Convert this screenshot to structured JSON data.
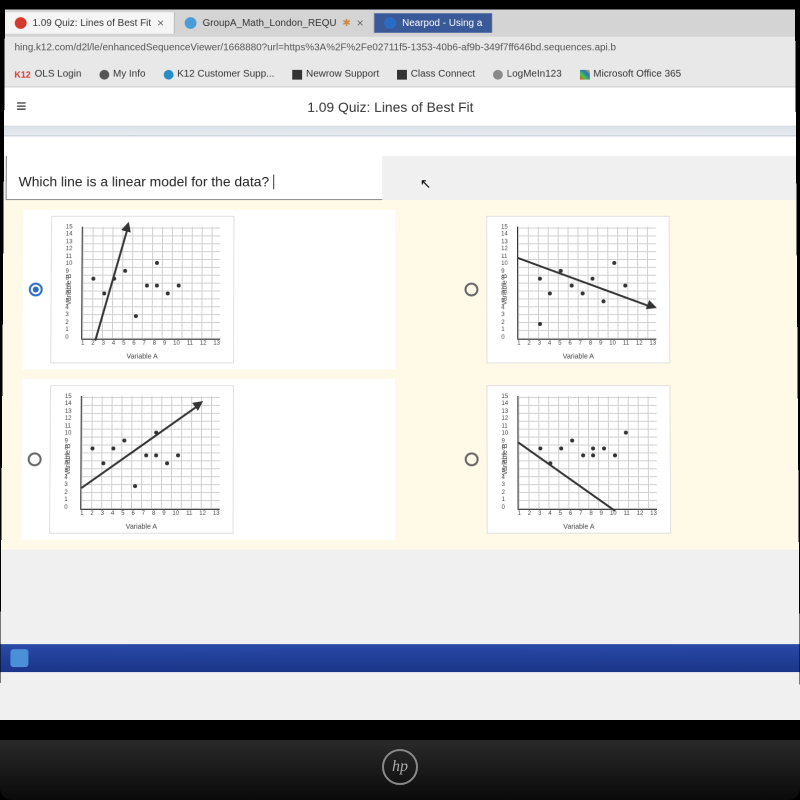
{
  "tabs": [
    {
      "label": "1.09 Quiz: Lines of Best Fit",
      "icon_color": "#d43a2c",
      "active": true
    },
    {
      "label": "GroupA_Math_London_REQU",
      "icon_color": "#4a9cd8",
      "active": false
    },
    {
      "label": "Nearpod - Using a",
      "icon_color": "#2a6cc4",
      "active": false
    }
  ],
  "url": "hing.k12.com/d2l/le/enhancedSequenceViewer/1668880?url=https%3A%2F%2Fe02711f5-1353-40b6-af9b-349f7ff646bd.sequences.api.b",
  "bookmarks": [
    {
      "label": "OLS Login",
      "prefix": "K12",
      "prefix_color": "#d43a2c"
    },
    {
      "label": "My Info",
      "icon_color": "#555"
    },
    {
      "label": "K12 Customer Supp...",
      "icon_color": "#2a8cc4"
    },
    {
      "label": "Newrow Support",
      "icon_color": "#333"
    },
    {
      "label": "Class Connect",
      "icon_color": "#333"
    },
    {
      "label": "LogMeIn123",
      "icon_color": "#888"
    },
    {
      "label": "Microsoft Office 365",
      "icon_color": "#e84a2c"
    }
  ],
  "page_title": "1.09 Quiz: Lines of Best Fit",
  "question": "Which line is a linear model for the data?",
  "axis_labels": {
    "x": "Variable A",
    "y": "Variable B"
  },
  "y_ticks": [
    "0",
    "1",
    "2",
    "3",
    "4",
    "5",
    "6",
    "7",
    "8",
    "9",
    "10",
    "11",
    "12",
    "13",
    "14",
    "15"
  ],
  "x_ticks": [
    "1",
    "2",
    "3",
    "4",
    "5",
    "6",
    "7",
    "8",
    "9",
    "10",
    "11",
    "12",
    "13"
  ],
  "charts": [
    {
      "selected": true,
      "points": [
        [
          1,
          8
        ],
        [
          2,
          6
        ],
        [
          3,
          8
        ],
        [
          4,
          9
        ],
        [
          5,
          3
        ],
        [
          6,
          7
        ],
        [
          7,
          10
        ],
        [
          7,
          7
        ],
        [
          8,
          6
        ],
        [
          9,
          7
        ]
      ],
      "line": {
        "x1": 1.2,
        "y1": 0,
        "x2": 4.2,
        "y2": 15,
        "arrow": true
      }
    },
    {
      "selected": false,
      "points": [
        [
          2,
          2
        ],
        [
          2,
          8
        ],
        [
          3,
          6
        ],
        [
          4,
          9
        ],
        [
          5,
          7
        ],
        [
          6,
          6
        ],
        [
          7,
          8
        ],
        [
          8,
          5
        ],
        [
          9,
          10
        ],
        [
          10,
          7
        ]
      ],
      "line": {
        "x1": 0,
        "y1": 11,
        "x2": 12.5,
        "y2": 4.5,
        "arrow": true
      }
    },
    {
      "selected": false,
      "points": [
        [
          1,
          8
        ],
        [
          2,
          6
        ],
        [
          3,
          8
        ],
        [
          4,
          9
        ],
        [
          5,
          3
        ],
        [
          6,
          7
        ],
        [
          7,
          10
        ],
        [
          7,
          7
        ],
        [
          8,
          6
        ],
        [
          9,
          7
        ]
      ],
      "line": {
        "x1": 0,
        "y1": 3,
        "x2": 11,
        "y2": 14,
        "arrow": true
      }
    },
    {
      "selected": false,
      "points": [
        [
          2,
          8
        ],
        [
          3,
          6
        ],
        [
          4,
          8
        ],
        [
          5,
          9
        ],
        [
          6,
          7
        ],
        [
          7,
          8
        ],
        [
          7,
          7
        ],
        [
          8,
          8
        ],
        [
          9,
          7
        ],
        [
          10,
          10
        ]
      ],
      "line": {
        "x1": 0,
        "y1": 9,
        "x2": 9,
        "y2": 0,
        "arrow": false
      }
    }
  ],
  "logo": "hp"
}
